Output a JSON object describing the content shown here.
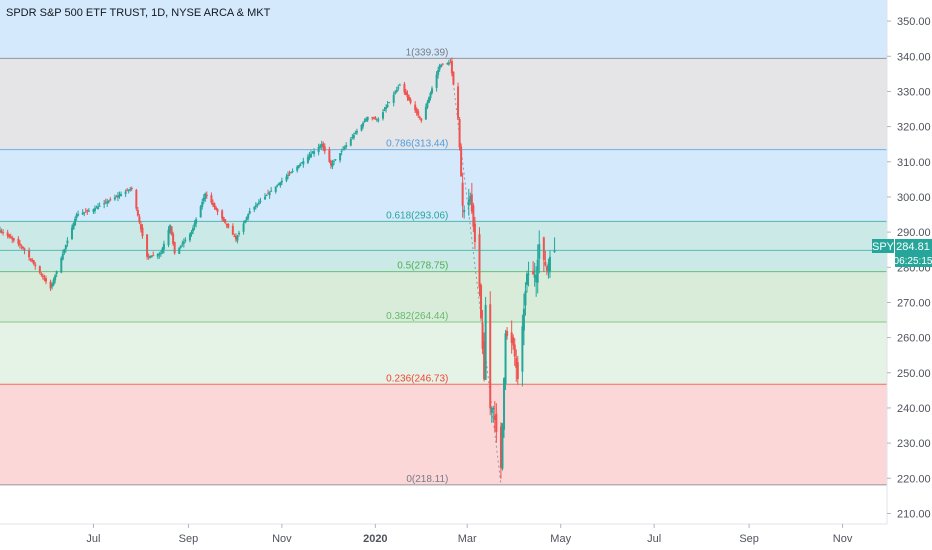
{
  "header": {
    "title": "SPDR S&P 500 ETF TRUST, 1D, NYSE ARCA & MKT"
  },
  "price_scale": {
    "symbol": "SPY",
    "last_price": "284.81",
    "countdown": "06:25:15",
    "accent_color": "#26a69a"
  },
  "chart_data": {
    "type": "candlestick",
    "title": "SPDR S&P 500 ETF TRUST, 1D, NYSE ARCA & MKT",
    "ylim": [
      207,
      356
    ],
    "y_ticks": [
      210,
      220,
      230,
      240,
      250,
      260,
      270,
      280,
      290,
      300,
      310,
      320,
      330,
      340,
      350
    ],
    "x_ticks": [
      "Jul",
      "Sep",
      "Nov",
      "2020",
      "Mar",
      "May",
      "Jul",
      "Sep",
      "Nov"
    ],
    "x_tick_dates": [
      "2019-07-01",
      "2019-09-01",
      "2019-11-01",
      "2020-01-01",
      "2020-03-01",
      "2020-05-01",
      "2020-07-01",
      "2020-09-01",
      "2020-11-01"
    ],
    "x_range": [
      "2019-05-01",
      "2020-11-30"
    ],
    "last_price": 284.81,
    "colors": {
      "up": "#26a69a",
      "down": "#ef5350"
    },
    "fib_levels": [
      {
        "ratio": "1",
        "price": 339.39,
        "label": "1(339.39)",
        "color": "#787b86"
      },
      {
        "ratio": "0.786",
        "price": 313.44,
        "label": "0.786(313.44)",
        "color": "#4a9de6"
      },
      {
        "ratio": "0.618",
        "price": 293.06,
        "label": "0.618(293.06)",
        "color": "#26a69a"
      },
      {
        "ratio": "0.5",
        "price": 278.75,
        "label": "0.5(278.75)",
        "color": "#4caf50"
      },
      {
        "ratio": "0.382",
        "price": 264.44,
        "label": "0.382(264.44)",
        "color": "#66bb6a"
      },
      {
        "ratio": "0.236",
        "price": 246.73,
        "label": "0.236(246.73)",
        "color": "#f44336"
      },
      {
        "ratio": "0",
        "price": 218.11,
        "label": "0(218.11)",
        "color": "#787b86"
      }
    ],
    "fib_zones": [
      {
        "from": 339.39,
        "to": 356,
        "fill": "#d4e9fb"
      },
      {
        "from": 313.44,
        "to": 339.39,
        "fill": "#e5e5e7"
      },
      {
        "from": 293.06,
        "to": 313.44,
        "fill": "#d4e9fb"
      },
      {
        "from": 278.75,
        "to": 293.06,
        "fill": "#cbe9e6"
      },
      {
        "from": 264.44,
        "to": 278.75,
        "fill": "#d8ecd9"
      },
      {
        "from": 246.73,
        "to": 264.44,
        "fill": "#e5f2e6"
      },
      {
        "from": 218.11,
        "to": 246.73,
        "fill": "#fbd7d8"
      }
    ],
    "fib_anchor": {
      "from": {
        "date": "2020-02-19",
        "price": 339.39
      },
      "to": {
        "date": "2020-03-23",
        "price": 218.11
      }
    },
    "close_anchors": [
      [
        "2019-05-01",
        290.5
      ],
      [
        "2019-05-15",
        286
      ],
      [
        "2019-06-03",
        274
      ],
      [
        "2019-06-20",
        295
      ],
      [
        "2019-07-01",
        296.5
      ],
      [
        "2019-07-26",
        302.5
      ],
      [
        "2019-08-05",
        283
      ],
      [
        "2019-08-14",
        284
      ],
      [
        "2019-08-20",
        292
      ],
      [
        "2019-08-23",
        284
      ],
      [
        "2019-09-03",
        290
      ],
      [
        "2019-09-12",
        301
      ],
      [
        "2019-10-02",
        288
      ],
      [
        "2019-10-11",
        296
      ],
      [
        "2019-10-28",
        303
      ],
      [
        "2019-11-27",
        315
      ],
      [
        "2019-12-03",
        309
      ],
      [
        "2019-12-27",
        322.8
      ],
      [
        "2020-01-03",
        322
      ],
      [
        "2020-01-17",
        331.9
      ],
      [
        "2020-01-31",
        321.7
      ],
      [
        "2020-02-12",
        337.4
      ],
      [
        "2020-02-19",
        338.3
      ],
      [
        "2020-02-24",
        322.4
      ],
      [
        "2020-02-27",
        297.5
      ],
      [
        "2020-02-28",
        296.3
      ],
      [
        "2020-03-03",
        300.2
      ],
      [
        "2020-03-09",
        274.2
      ],
      [
        "2020-03-12",
        248.1
      ],
      [
        "2020-03-13",
        269.3
      ],
      [
        "2020-03-16",
        239.9
      ],
      [
        "2020-03-18",
        240
      ],
      [
        "2020-03-23",
        222.9
      ],
      [
        "2020-03-26",
        261.2
      ],
      [
        "2020-03-31",
        257.8
      ],
      [
        "2020-04-03",
        248.2
      ],
      [
        "2020-04-09",
        278.2
      ],
      [
        "2020-04-15",
        277.8
      ],
      [
        "2020-04-17",
        286.6
      ],
      [
        "2020-04-22",
        279.1
      ],
      [
        "2020-04-24",
        282.97
      ],
      [
        "2020-04-27",
        284.81
      ]
    ]
  }
}
